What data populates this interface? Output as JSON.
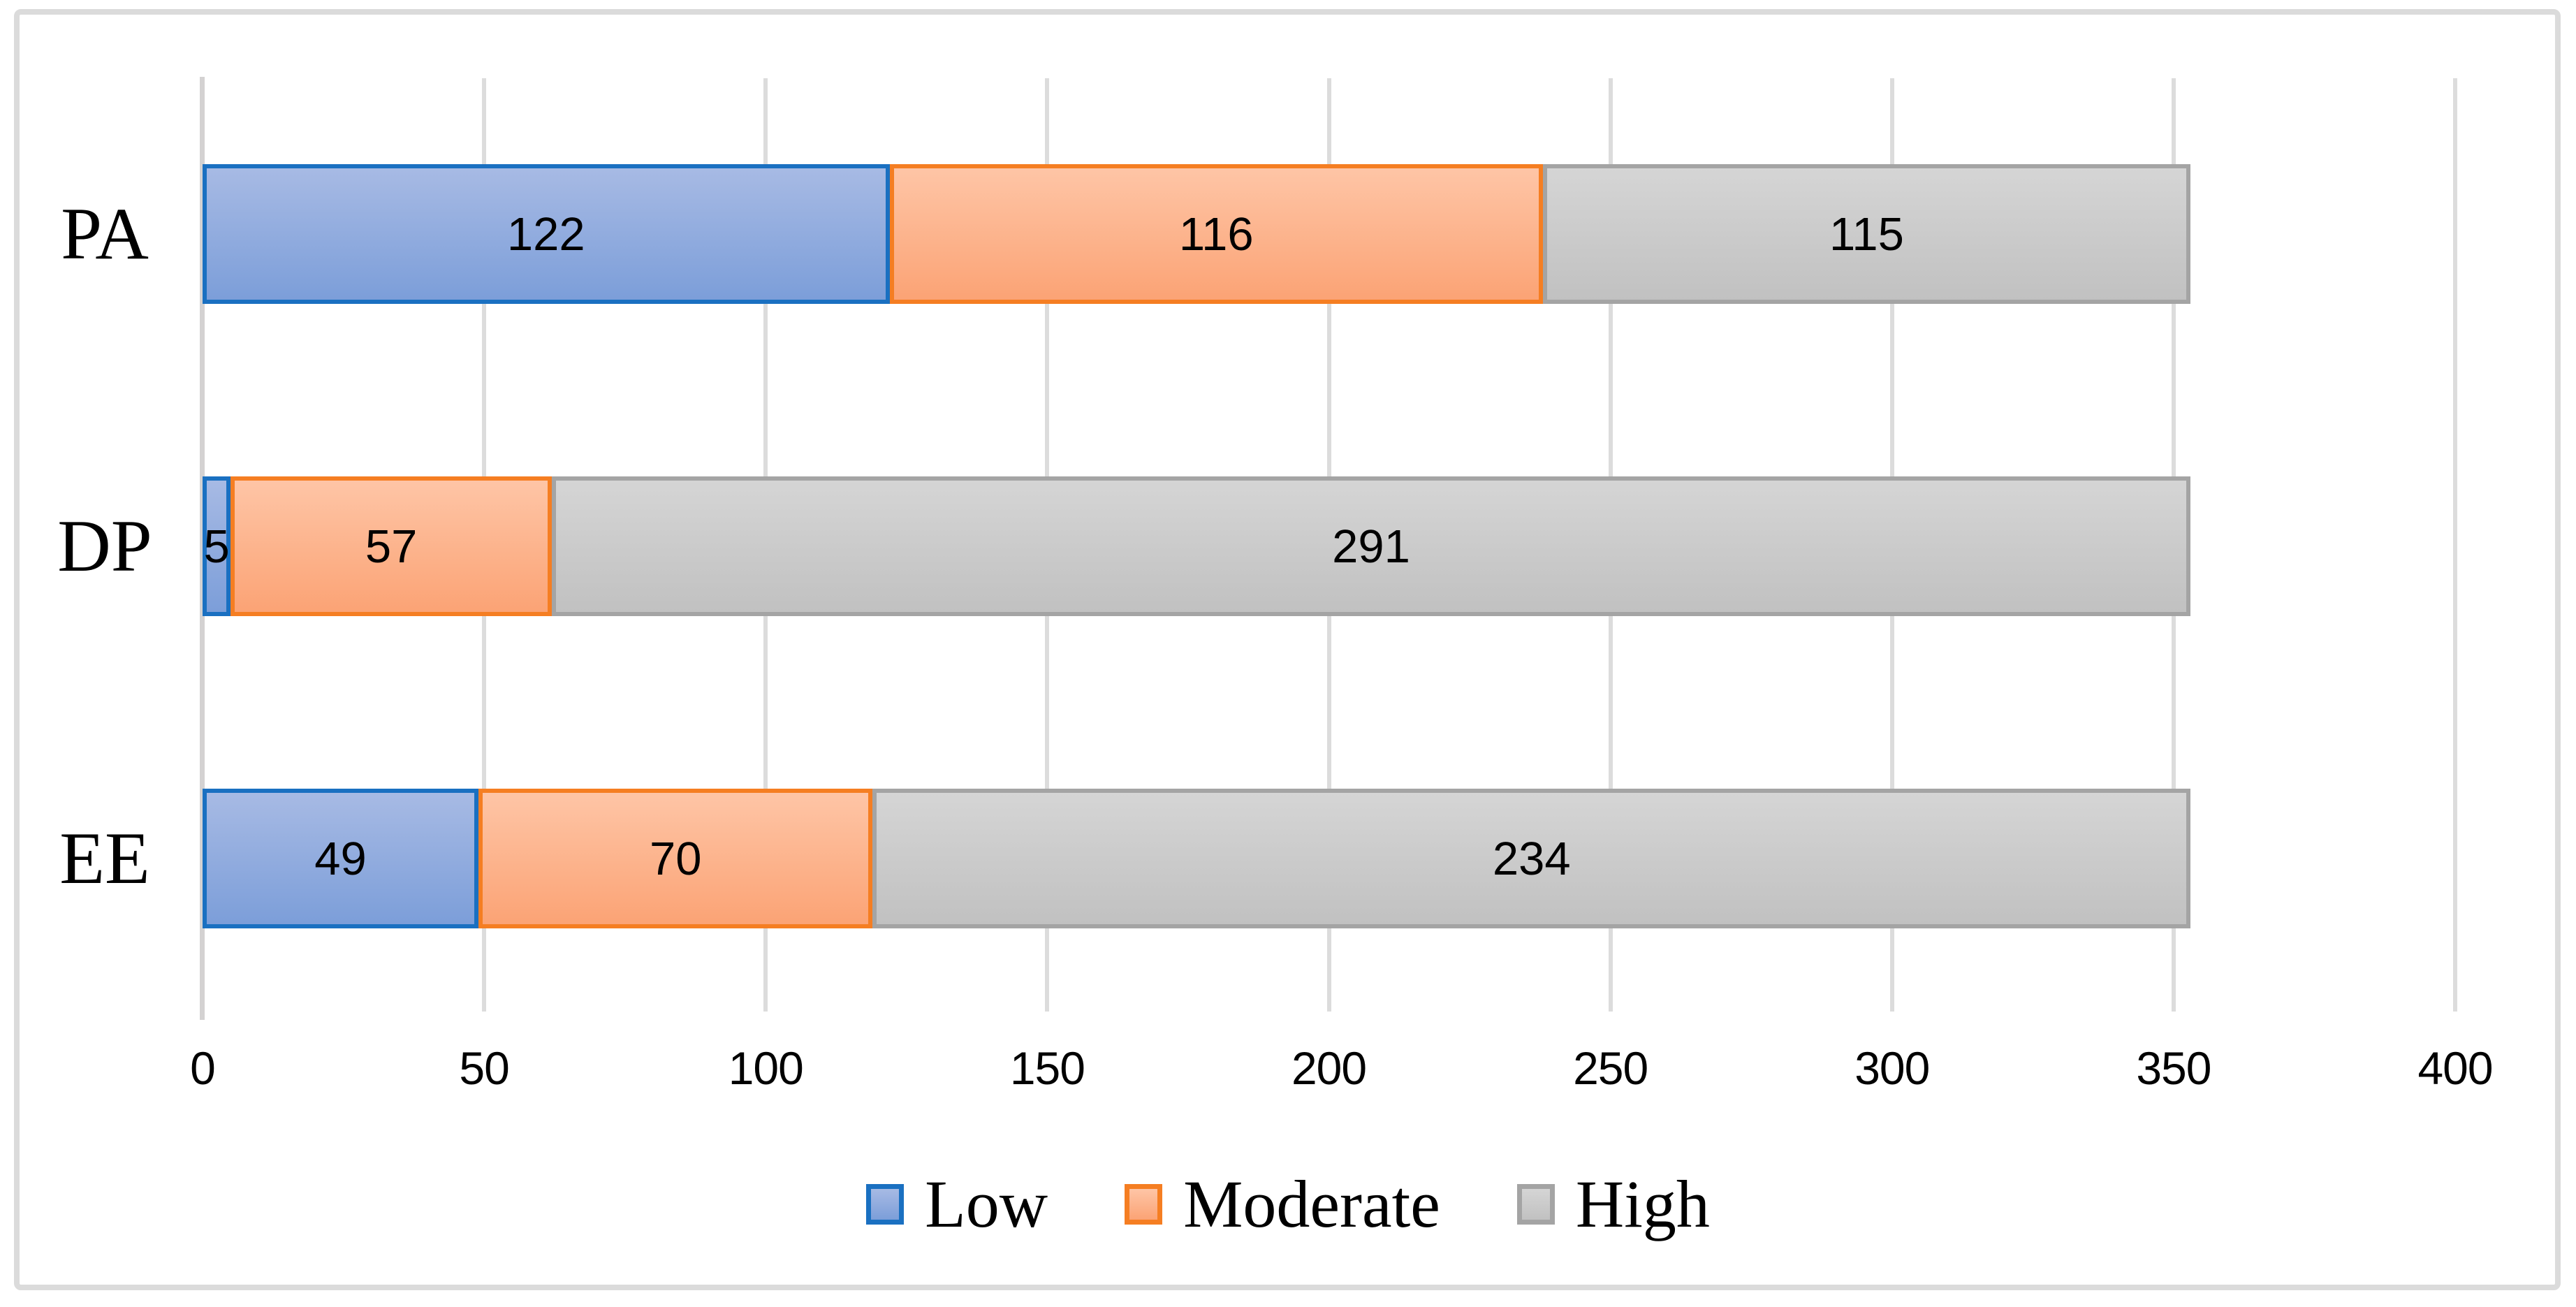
{
  "chart_data": {
    "type": "bar",
    "orientation": "horizontal",
    "stacked": true,
    "title": "",
    "xlabel": "",
    "ylabel": "",
    "categories": [
      "PA",
      "DP",
      "EE"
    ],
    "series": [
      {
        "name": "Low",
        "values": [
          122,
          5,
          49
        ],
        "fill_top": "#a7bae4",
        "fill_bottom": "#7c9ed9",
        "border": "#1a70c1"
      },
      {
        "name": "Moderate",
        "values": [
          116,
          57,
          70
        ],
        "fill_top": "#fec5a6",
        "fill_bottom": "#fba375",
        "border": "#f57e22"
      },
      {
        "name": "High",
        "values": [
          115,
          291,
          234
        ],
        "fill_top": "#d5d5d5",
        "fill_bottom": "#c1c1c1",
        "border": "#a4a4a4"
      }
    ],
    "row_totals": [
      353,
      353,
      353
    ],
    "x_axis": {
      "min": 0,
      "max": 400,
      "tick_interval": 50,
      "tick_labels": [
        "0",
        "50",
        "100",
        "150",
        "200",
        "250",
        "300",
        "350",
        "400"
      ]
    },
    "grid": "vertical",
    "gridline_color": "#dcdcdc",
    "legend": {
      "position": "bottom",
      "entries": [
        "Low",
        "Moderate",
        "High"
      ]
    },
    "data_labels_shown": true,
    "frame_border_color": "#dbdbdb",
    "background_color": "#ffffff"
  }
}
